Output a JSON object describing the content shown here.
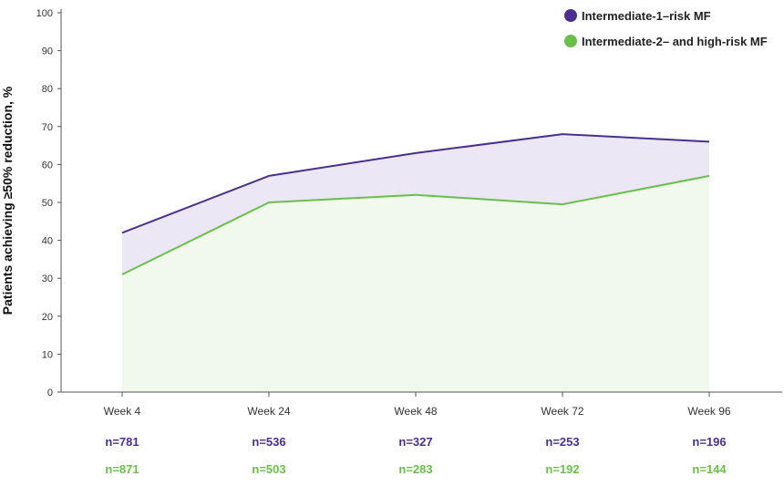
{
  "chart_data": {
    "type": "area",
    "categories": [
      "Week 4",
      "Week 24",
      "Week 48",
      "Week 72",
      "Week 96"
    ],
    "series": [
      {
        "name": "Intermediate-1–risk MF",
        "values": [
          42,
          57,
          63,
          68,
          66
        ],
        "color": "#4b2f8e",
        "fill": "#ebe7f5",
        "n": [
          "n=781",
          "n=536",
          "n=327",
          "n=253",
          "n=196"
        ]
      },
      {
        "name": "Intermediate-2– and high-risk MF",
        "values": [
          31,
          50,
          52,
          49.5,
          57
        ],
        "color": "#6abf4b",
        "fill": "#f1f8ec",
        "n": [
          "n=871",
          "n=503",
          "n=283",
          "n=192",
          "n=144"
        ]
      }
    ],
    "ylabel": "Patients achieving ≥50% reduction, %",
    "ylim": [
      0,
      100
    ],
    "yticks": [
      0,
      10,
      20,
      30,
      40,
      50,
      60,
      70,
      80,
      90,
      100
    ],
    "grid": false,
    "legend": "top-right"
  }
}
